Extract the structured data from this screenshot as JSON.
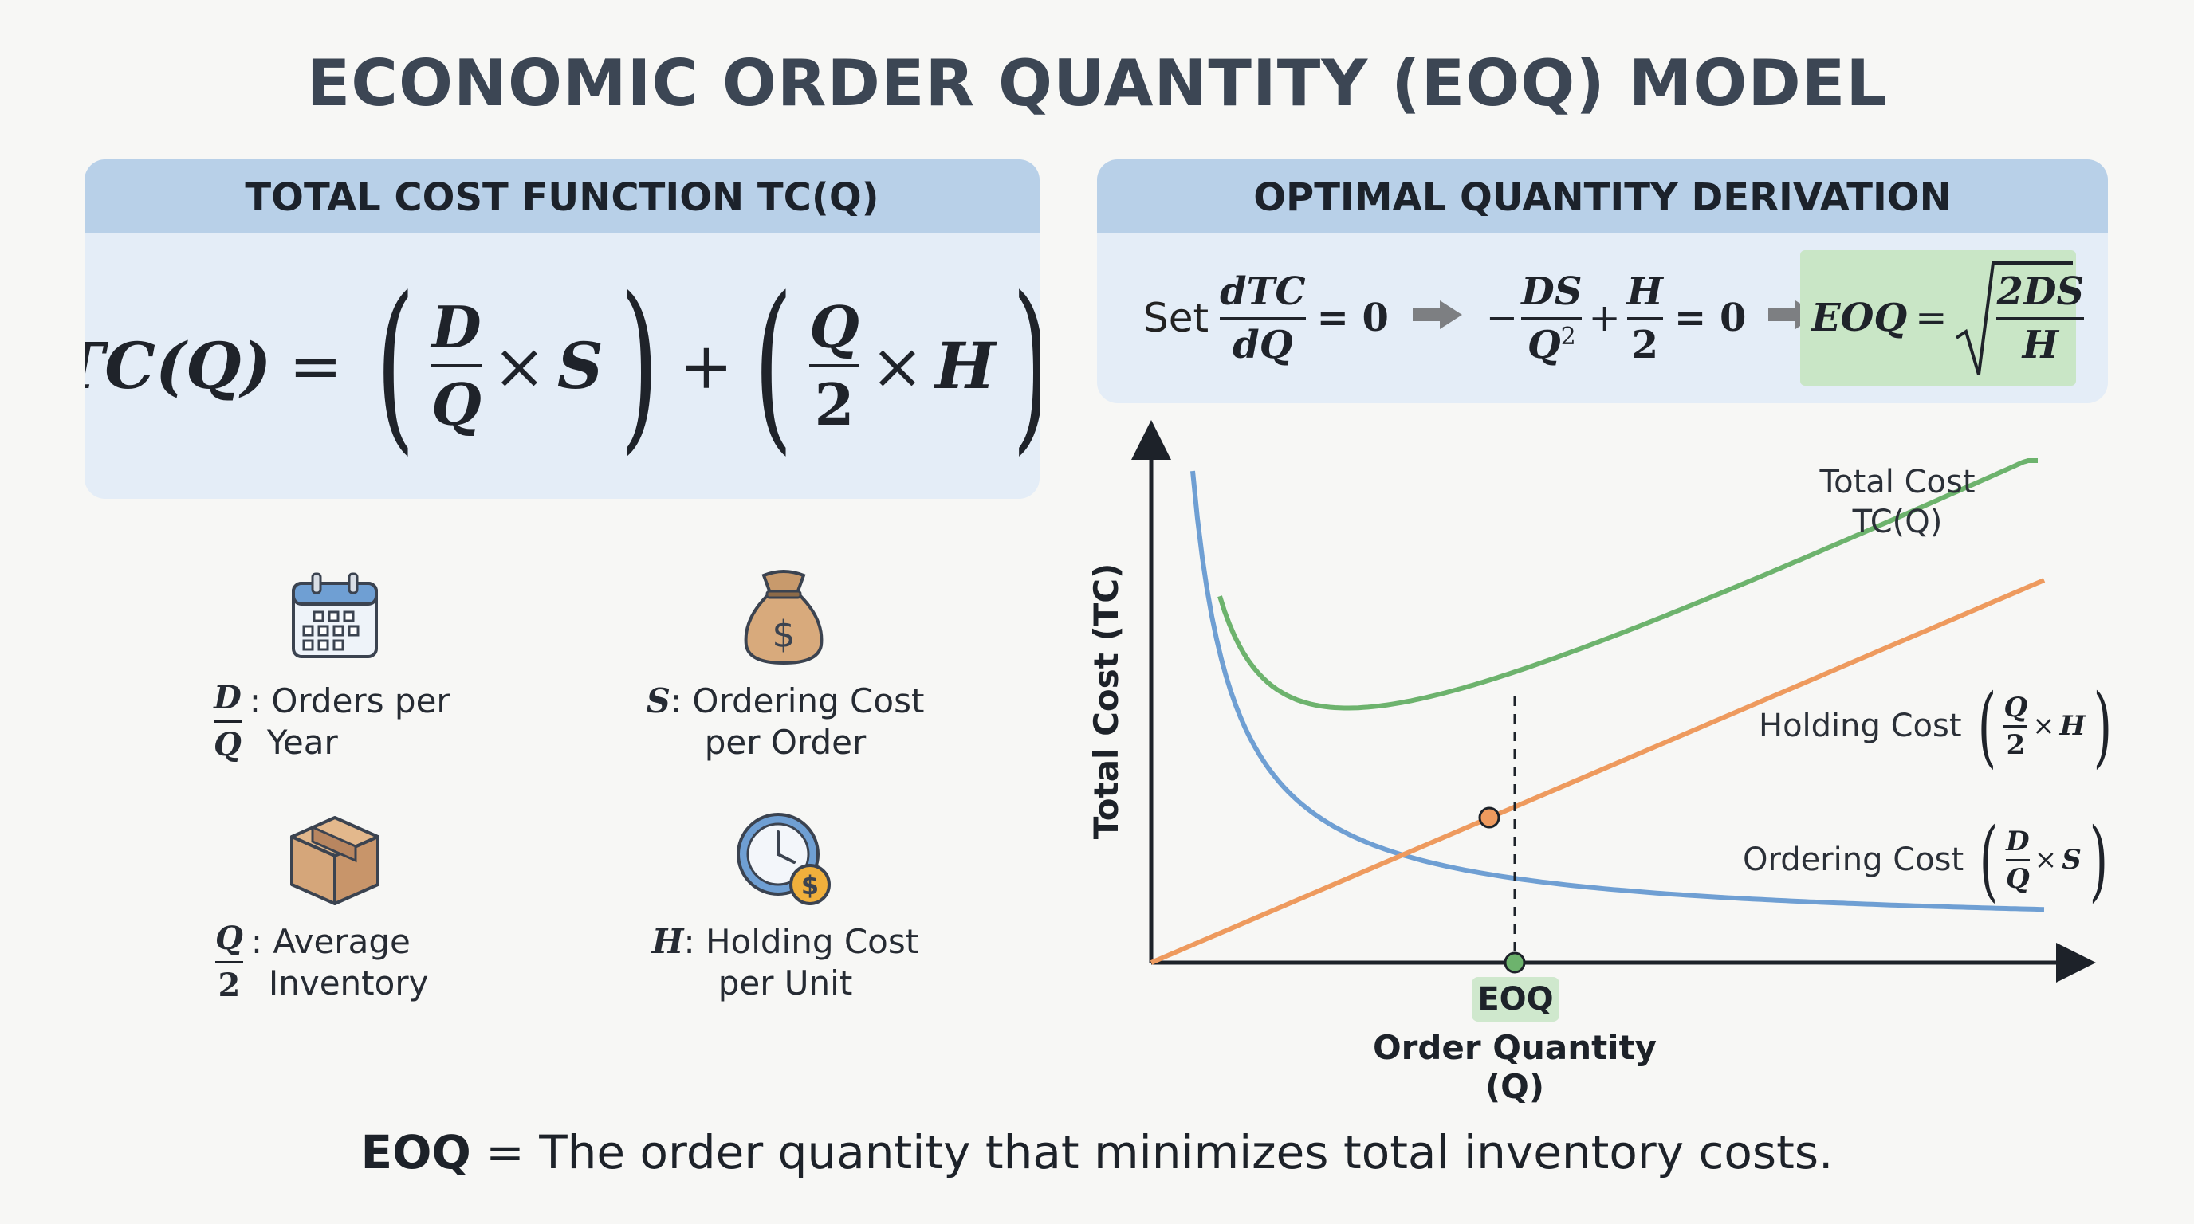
{
  "title": "ECONOMIC ORDER QUANTITY (EOQ) MODEL",
  "left_panel": {
    "heading": "TOTAL COST FUNCTION TC(Q)",
    "formula": {
      "lhs": "TC(Q)",
      "eq": "=",
      "d": "D",
      "q": "Q",
      "s": "S",
      "two": "2",
      "h": "H",
      "times": "×",
      "plus": "+"
    }
  },
  "right_panel": {
    "heading": "OPTIMAL QUANTITY DERIVATION",
    "set_word": "Set",
    "dtc": "dTC",
    "dq": "dQ",
    "eq_zero": "= 0",
    "minus": "−",
    "ds": "DS",
    "q2": "Q",
    "exp2": "2",
    "plus": "+",
    "h": "H",
    "two": "2",
    "eoq_lhs": "EOQ",
    "eq": "=",
    "two_ds": "2DS",
    "h_den": "H"
  },
  "legend": [
    {
      "icon": "calendar-icon",
      "num": "D",
      "den": "Q",
      "text": ": Orders per",
      "text2": "Year"
    },
    {
      "icon": "money-bag-icon",
      "sym": "S",
      "text": ": Ordering Cost",
      "text2": "per Order"
    },
    {
      "icon": "box-icon",
      "num": "Q",
      "den": "2",
      "text": ": Average",
      "text2": "Inventory"
    },
    {
      "icon": "clock-coin-icon",
      "sym": "H",
      "text": ": Holding Cost",
      "text2": "per Unit"
    }
  ],
  "chart": {
    "ylabel": "Total Cost (TC)",
    "xlabel": "Order Quantity (Q)",
    "eoq_badge": "EOQ",
    "total_label_1": "Total Cost",
    "total_label_2": "TC(Q)",
    "holding_label": "Holding Cost",
    "ordering_label": "Ordering Cost",
    "colors": {
      "total": "#6db36d",
      "holding": "#ee9a5e",
      "ordering": "#6f9fd3",
      "eoq_badge": "#cfe8cd"
    }
  },
  "footer": {
    "bold": "EOQ",
    "rest": " = The order quantity that minimizes total inventory costs."
  }
}
